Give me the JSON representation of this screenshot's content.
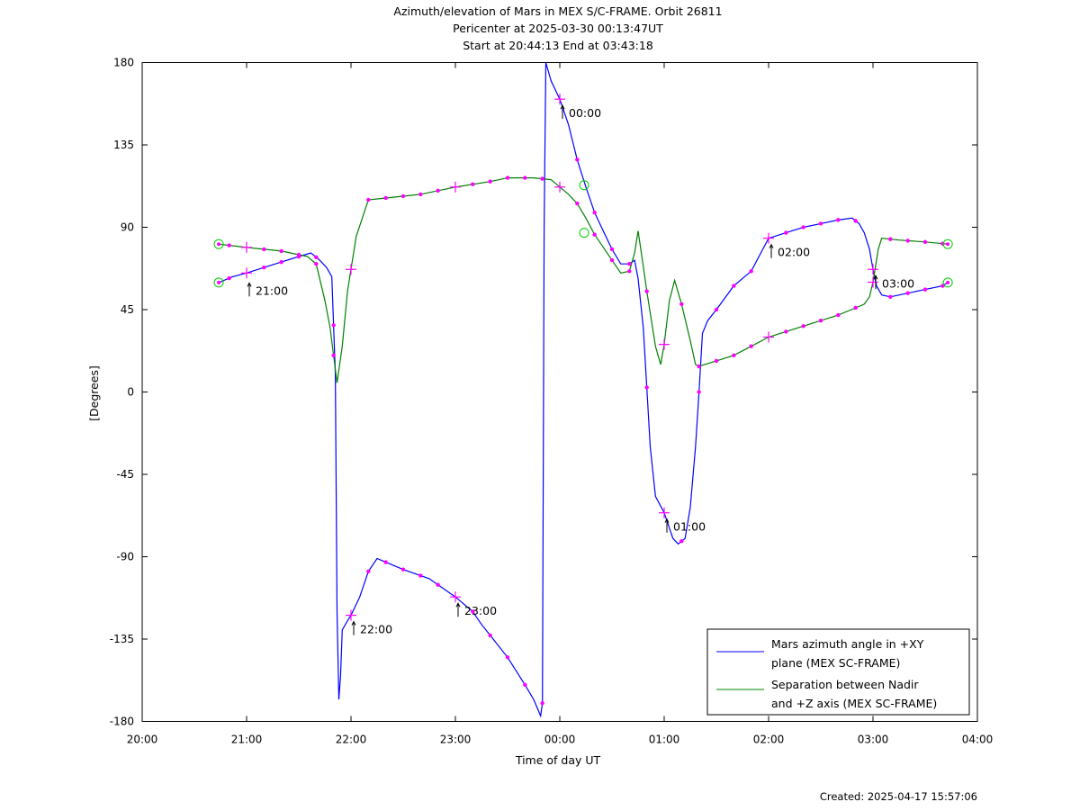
{
  "chart_data": {
    "type": "line",
    "title_lines": [
      "Azimuth/elevation of Mars in MEX S/C-FRAME.  Orbit 26811",
      "Pericenter at 2025-03-30 00:13:47UT",
      "Start at 20:44:13 End at 03:43:18"
    ],
    "xlabel": "Time of day UT",
    "ylabel": "[Degrees]",
    "footer": "Created: 2025-04-17 15:57:06",
    "x_ticks": [
      "20:00",
      "21:00",
      "22:00",
      "23:00",
      "00:00",
      "01:00",
      "02:00",
      "03:00",
      "04:00"
    ],
    "y_ticks": [
      "180",
      "135",
      "90",
      "45",
      "0",
      "-45",
      "-90",
      "-135",
      "-180"
    ],
    "ylim": [
      -180,
      180
    ],
    "xlim": [
      "20:00",
      "04:00"
    ],
    "grid": false,
    "legend_position": "bottom-right",
    "colors": {
      "azimuth": "#0000ff",
      "separation": "#008000",
      "marker": "#ff00ff",
      "endpoint": "#00cc00"
    },
    "annotations": [
      {
        "text": "21:00",
        "x": "21:00",
        "y": 63
      },
      {
        "text": "22:00",
        "x": "22:00",
        "y": -122
      },
      {
        "text": "23:00",
        "x": "23:00",
        "y": -112
      },
      {
        "text": "00:00",
        "x": "00:00",
        "y": 160
      },
      {
        "text": "01:00",
        "x": "01:00",
        "y": -66
      },
      {
        "text": "02:00",
        "x": "02:00",
        "y": 84
      },
      {
        "text": "03:00",
        "x": "03:00",
        "y": 67
      }
    ],
    "series": [
      {
        "name": "Mars azimuth angle in +XY\nplane (MEX SC-FRAME)",
        "color": "#0000ff",
        "x_start": "20:44",
        "points": [
          [
            "20:44",
            59.8
          ],
          [
            "20:52",
            63
          ],
          [
            "21:00",
            65
          ],
          [
            "21:10",
            68
          ],
          [
            "21:20",
            71
          ],
          [
            "21:30",
            74
          ],
          [
            "21:37",
            76
          ],
          [
            "21:42",
            72
          ],
          [
            "21:46",
            68
          ],
          [
            "21:49",
            63
          ],
          [
            "21:51",
            10
          ],
          [
            "21:52",
            -120
          ],
          [
            "21:53",
            -168
          ],
          [
            "21:54",
            -155
          ],
          [
            "21:55",
            -130
          ],
          [
            "21:58",
            -125
          ],
          [
            "22:00",
            -122
          ],
          [
            "22:05",
            -112
          ],
          [
            "22:10",
            -98
          ],
          [
            "22:15",
            -91
          ],
          [
            "22:20",
            -93
          ],
          [
            "22:30",
            -97
          ],
          [
            "22:45",
            -102
          ],
          [
            "23:00",
            -112
          ],
          [
            "23:10",
            -120
          ],
          [
            "23:15",
            -127
          ],
          [
            "23:20",
            -133
          ],
          [
            "23:30",
            -145
          ],
          [
            "23:40",
            -160
          ],
          [
            "23:45",
            -168
          ],
          [
            "23:49",
            -177
          ],
          [
            "23:50",
            -170
          ],
          [
            "23:51",
            90
          ],
          [
            "23:52",
            180
          ],
          [
            "23:55",
            170
          ],
          [
            "00:00",
            160
          ],
          [
            "00:05",
            146
          ],
          [
            "00:10",
            127
          ],
          [
            "00:15",
            112
          ],
          [
            "00:20",
            98
          ],
          [
            "00:25",
            88
          ],
          [
            "00:30",
            78
          ],
          [
            "00:35",
            70
          ],
          [
            "00:40",
            70
          ],
          [
            "00:43",
            72
          ],
          [
            "00:45",
            62
          ],
          [
            "00:48",
            35
          ],
          [
            "00:52",
            -30
          ],
          [
            "00:55",
            -57
          ],
          [
            "01:00",
            -66
          ],
          [
            "01:05",
            -80
          ],
          [
            "01:08",
            -83
          ],
          [
            "01:12",
            -80
          ],
          [
            "01:15",
            -63
          ],
          [
            "01:18",
            -30
          ],
          [
            "01:20",
            0
          ],
          [
            "01:22",
            32
          ],
          [
            "01:25",
            39
          ],
          [
            "01:30",
            45
          ],
          [
            "01:40",
            58
          ],
          [
            "01:50",
            66
          ],
          [
            "02:00",
            84
          ],
          [
            "02:10",
            87
          ],
          [
            "02:20",
            90
          ],
          [
            "02:30",
            92
          ],
          [
            "02:40",
            94
          ],
          [
            "02:48",
            95
          ],
          [
            "02:52",
            92
          ],
          [
            "02:55",
            87
          ],
          [
            "02:58",
            78
          ],
          [
            "03:00",
            67
          ],
          [
            "03:02",
            58
          ],
          [
            "03:05",
            53
          ],
          [
            "03:10",
            52
          ],
          [
            "03:20",
            54
          ],
          [
            "03:30",
            56
          ],
          [
            "03:40",
            58
          ],
          [
            "03:43",
            59.8
          ]
        ]
      },
      {
        "name": "Separation between Nadir\nand +Z axis (MEX SC-FRAME)",
        "color": "#008000",
        "points": [
          [
            "20:44",
            80.8
          ],
          [
            "21:00",
            79
          ],
          [
            "21:10",
            78
          ],
          [
            "21:20",
            77
          ],
          [
            "21:30",
            75
          ],
          [
            "21:35",
            74
          ],
          [
            "21:40",
            70
          ],
          [
            "21:45",
            50
          ],
          [
            "21:48",
            35
          ],
          [
            "21:52",
            5
          ],
          [
            "21:55",
            25
          ],
          [
            "21:58",
            55
          ],
          [
            "22:03",
            85
          ],
          [
            "22:10",
            105
          ],
          [
            "22:20",
            106
          ],
          [
            "22:40",
            108
          ],
          [
            "23:00",
            112
          ],
          [
            "23:20",
            115
          ],
          [
            "23:30",
            117
          ],
          [
            "23:45",
            117
          ],
          [
            "23:55",
            116
          ],
          [
            "00:00",
            112
          ],
          [
            "00:05",
            108
          ],
          [
            "00:10",
            103
          ],
          [
            "00:15",
            95
          ],
          [
            "00:20",
            86
          ],
          [
            "00:30",
            72
          ],
          [
            "00:35",
            65
          ],
          [
            "00:40",
            66
          ],
          [
            "00:43",
            76
          ],
          [
            "00:45",
            88
          ],
          [
            "00:47",
            75
          ],
          [
            "00:50",
            55
          ],
          [
            "00:55",
            25
          ],
          [
            "00:58",
            15
          ],
          [
            "01:00",
            26
          ],
          [
            "01:03",
            50
          ],
          [
            "01:06",
            61
          ],
          [
            "01:10",
            48
          ],
          [
            "01:15",
            28
          ],
          [
            "01:18",
            15
          ],
          [
            "01:20",
            14
          ],
          [
            "01:30",
            17
          ],
          [
            "01:40",
            20
          ],
          [
            "01:50",
            25
          ],
          [
            "02:00",
            30
          ],
          [
            "02:10",
            33
          ],
          [
            "02:20",
            36
          ],
          [
            "02:30",
            39
          ],
          [
            "02:40",
            42
          ],
          [
            "02:50",
            46
          ],
          [
            "02:55",
            48
          ],
          [
            "02:58",
            52
          ],
          [
            "03:00",
            60
          ],
          [
            "03:03",
            78
          ],
          [
            "03:05",
            84
          ],
          [
            "03:15",
            83
          ],
          [
            "03:30",
            82
          ],
          [
            "03:43",
            80.8
          ]
        ]
      }
    ],
    "legend": [
      {
        "line1": "Mars azimuth angle in +XY",
        "line2": "plane (MEX SC-FRAME)",
        "color": "#0000ff"
      },
      {
        "line1": "Separation between Nadir",
        "line2": "and +Z axis (MEX SC-FRAME)",
        "color": "#008000"
      }
    ]
  }
}
